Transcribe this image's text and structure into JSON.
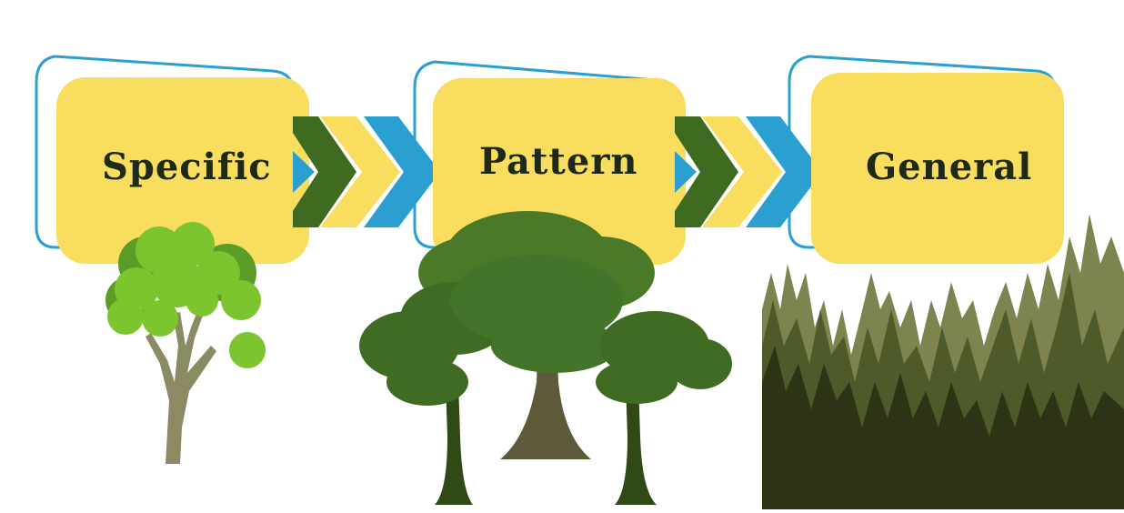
{
  "diagram": {
    "stages": [
      {
        "label": "Specific",
        "illustration": "single-tree"
      },
      {
        "label": "Pattern",
        "illustration": "group-of-trees"
      },
      {
        "label": "General",
        "illustration": "forest"
      }
    ],
    "connector": "chevron-arrows"
  },
  "colors": {
    "box_fill": "#f9dd5e",
    "box_outline": "#2b9fd0",
    "chevron_dark_green": "#3e6b20",
    "chevron_yellow": "#f9dd5e",
    "chevron_blue": "#2b9fd0",
    "tree_light_green": "#7cc52f",
    "tree_trunk": "#8b8a62",
    "oak_green": "#3f6b22",
    "oak_trunk": "#5d5a3a",
    "forest_olive": "#7d8450",
    "forest_dark": "#2d3416"
  }
}
